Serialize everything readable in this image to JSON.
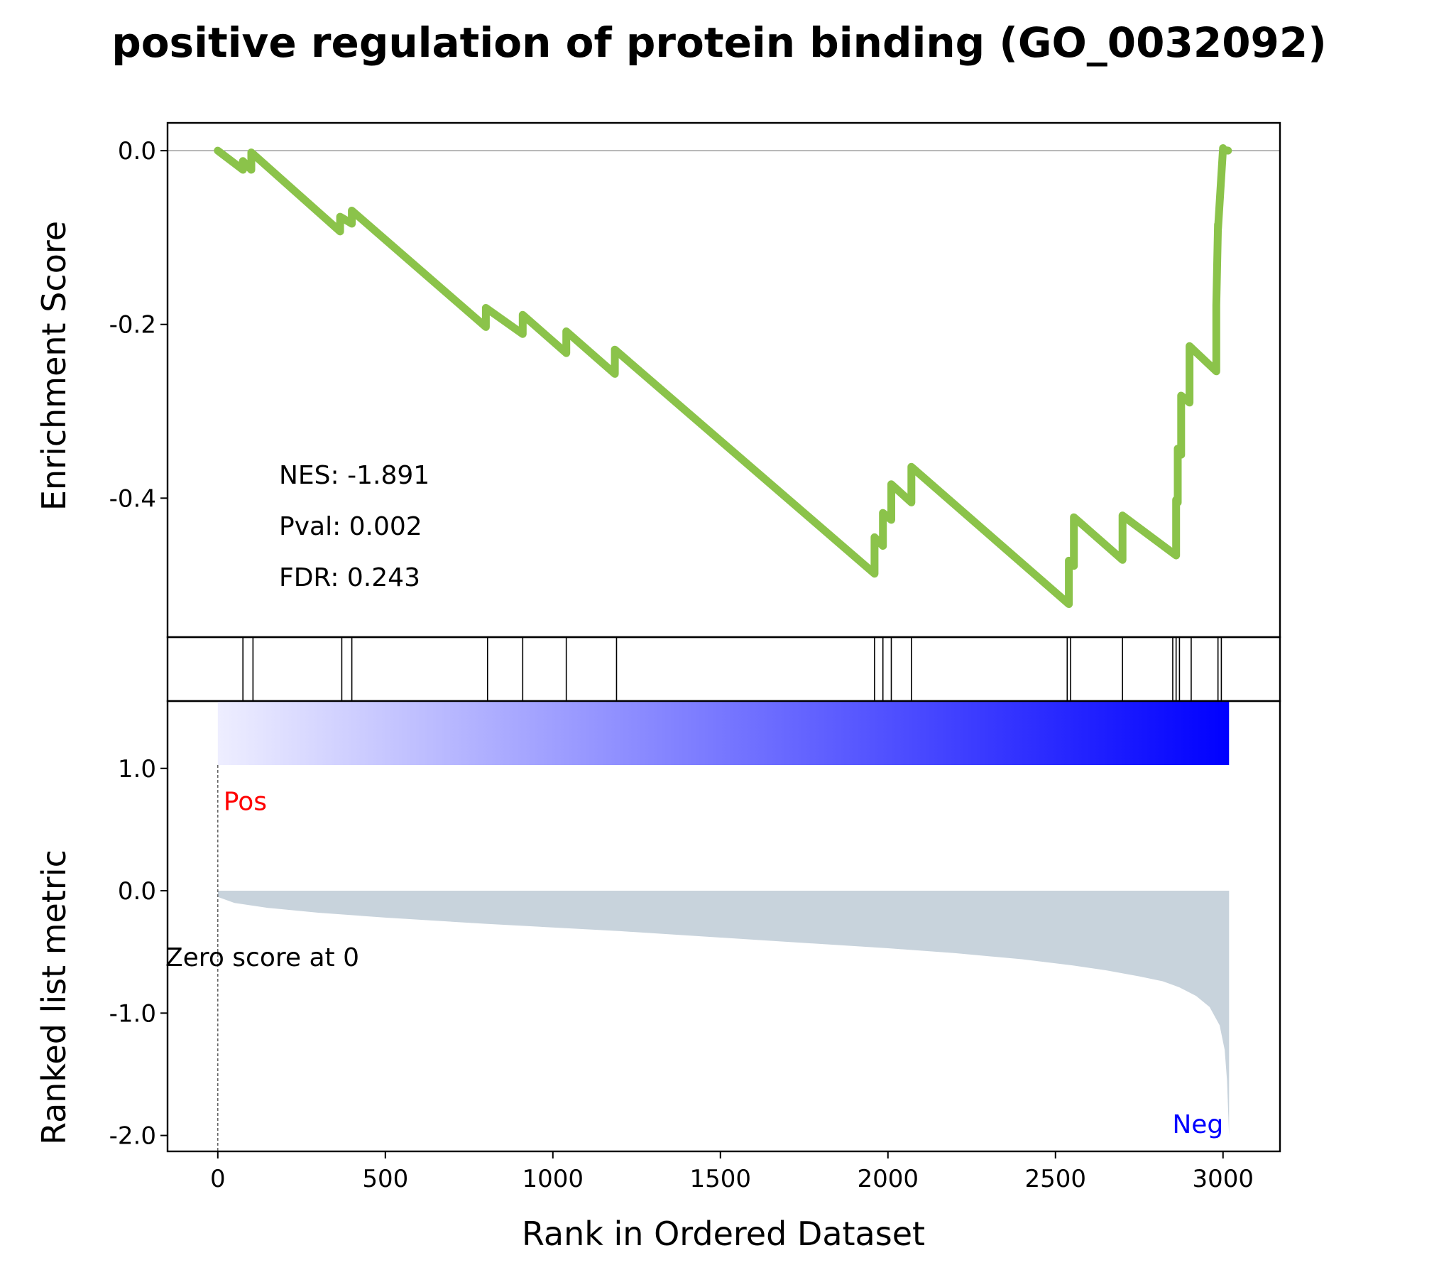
{
  "chart_data": {
    "type": "line",
    "title": "positive regulation of protein binding (GO_0032092)",
    "xlabel": "Rank in Ordered Dataset",
    "xlim": [
      -150,
      3170
    ],
    "x_ticks": [
      0,
      500,
      1000,
      1500,
      2000,
      2500,
      3000
    ],
    "x_tick_labels": [
      "0",
      "500",
      "1000",
      "1500",
      "2000",
      "2500",
      "3000"
    ],
    "enrichment": {
      "ylabel": "Enrichment Score",
      "ylim": [
        -0.56,
        0.032
      ],
      "y_ticks": [
        0.0,
        -0.2,
        -0.4
      ],
      "y_tick_labels": [
        "0.0",
        "-0.2",
        "-0.4"
      ],
      "zero_line": true,
      "color": "#8bc34a",
      "series": [
        {
          "x": [
            0,
            75,
            75,
            100,
            100,
            365,
            365,
            400,
            400,
            800,
            800,
            910,
            910,
            1040,
            1040,
            1185,
            1185,
            1960,
            1960,
            1985,
            1985,
            2010,
            2010,
            2070,
            2070,
            2540,
            2540,
            2555,
            2555,
            2700,
            2700,
            2860,
            2860,
            2865,
            2865,
            2875,
            2875,
            2900,
            2900,
            2980,
            2980,
            2985,
            2985,
            3000,
            3000,
            3015
          ],
          "y": [
            0.0,
            -0.022,
            -0.012,
            -0.022,
            -0.002,
            -0.093,
            -0.076,
            -0.084,
            -0.069,
            -0.203,
            -0.181,
            -0.211,
            -0.189,
            -0.233,
            -0.208,
            -0.257,
            -0.229,
            -0.487,
            -0.445,
            -0.455,
            -0.417,
            -0.425,
            -0.384,
            -0.405,
            -0.364,
            -0.522,
            -0.472,
            -0.478,
            -0.422,
            -0.471,
            -0.42,
            -0.466,
            -0.402,
            -0.405,
            -0.343,
            -0.35,
            -0.282,
            -0.29,
            -0.225,
            -0.254,
            -0.178,
            -0.085,
            -0.09,
            0.003,
            0.001,
            0.0
          ]
        }
      ],
      "annotations": {
        "nes": "NES: -1.891",
        "pval": "Pval: 0.002",
        "fdr": "FDR: 0.243"
      }
    },
    "hits": [
      75,
      105,
      370,
      400,
      805,
      910,
      1040,
      1190,
      1960,
      1985,
      2010,
      2070,
      2535,
      2545,
      2700,
      2850,
      2860,
      2870,
      2905,
      2985,
      2995
    ],
    "rank_colorbar": {
      "colors": [
        "#eeeeff",
        "#0000ff"
      ]
    },
    "ranked_metric": {
      "ylabel": "Ranked list metric",
      "ylim": [
        -2.13,
        1.55
      ],
      "y_ticks": [
        1.0,
        0.0,
        -1.0,
        -2.0
      ],
      "y_tick_labels": [
        "1.0",
        "0.0",
        "-1.0",
        "-2.0"
      ],
      "fill_color": "#c8d3dc",
      "x": [
        0,
        50,
        150,
        300,
        500,
        800,
        1200,
        1600,
        2000,
        2200,
        2400,
        2550,
        2650,
        2750,
        2820,
        2870,
        2920,
        2960,
        2990,
        3005,
        3012,
        3018
      ],
      "y": [
        -0.05,
        -0.1,
        -0.14,
        -0.18,
        -0.22,
        -0.27,
        -0.33,
        -0.4,
        -0.47,
        -0.51,
        -0.56,
        -0.61,
        -0.65,
        -0.7,
        -0.74,
        -0.79,
        -0.86,
        -0.95,
        -1.1,
        -1.3,
        -1.55,
        -2.0
      ],
      "labels": {
        "pos": "Pos",
        "neg": "Neg",
        "zero": "Zero score at 0"
      },
      "zero_position": 0,
      "pos_color": "#ff0000",
      "neg_color": "#0000ff"
    }
  }
}
